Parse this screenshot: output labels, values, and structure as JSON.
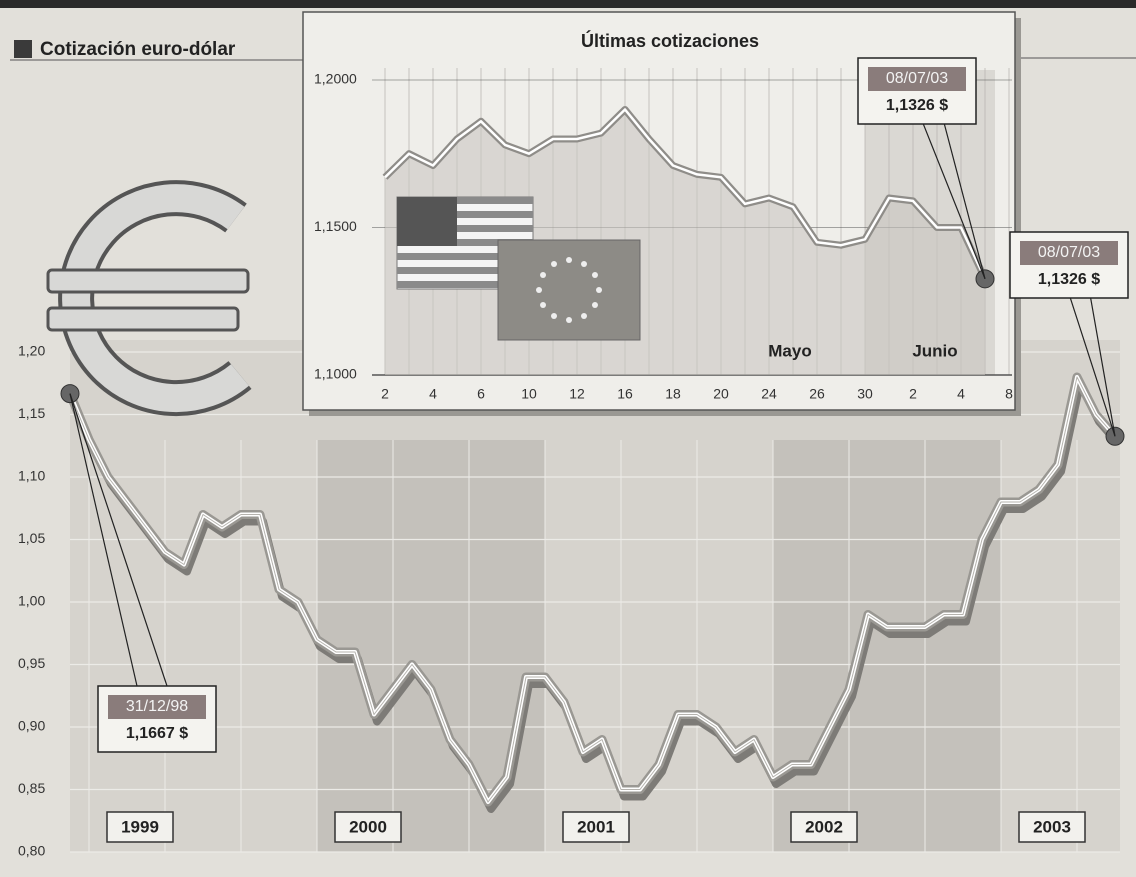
{
  "chart_data": [
    {
      "type": "line",
      "title": "Cotización euro-dólar",
      "categories": [
        null,
        "1999",
        null,
        null,
        null,
        null,
        null,
        null,
        null,
        null,
        null,
        null,
        null,
        "2000",
        null,
        null,
        null,
        null,
        null,
        null,
        null,
        null,
        null,
        null,
        null,
        "2001",
        null,
        null,
        null,
        null,
        null,
        null,
        null,
        null,
        null,
        null,
        null,
        "2002",
        null,
        null,
        null,
        null,
        null,
        null,
        null,
        null,
        null,
        null,
        null,
        "2003",
        null,
        null,
        null,
        null,
        null,
        null
      ],
      "values": [
        1.1667,
        1.13,
        1.1,
        1.08,
        1.06,
        1.04,
        1.03,
        1.07,
        1.06,
        1.07,
        1.07,
        1.01,
        1.0,
        0.97,
        0.96,
        0.96,
        0.91,
        0.93,
        0.95,
        0.93,
        0.89,
        0.87,
        0.84,
        0.86,
        0.94,
        0.94,
        0.92,
        0.88,
        0.89,
        0.85,
        0.85,
        0.87,
        0.91,
        0.91,
        0.9,
        0.88,
        0.89,
        0.86,
        0.87,
        0.87,
        0.9,
        0.93,
        0.99,
        0.98,
        0.98,
        0.98,
        0.99,
        0.99,
        1.05,
        1.08,
        1.08,
        1.09,
        1.11,
        1.18,
        1.15,
        1.1326
      ],
      "color": "#ffffff",
      "ylim": [
        0.8,
        1.2
      ],
      "yticks": [
        {
          "value": 0.8,
          "label": "0,80"
        },
        {
          "value": 0.85,
          "label": "0,85"
        },
        {
          "value": 0.9,
          "label": "0,90"
        },
        {
          "value": 0.95,
          "label": "0,95"
        },
        {
          "value": 1.0,
          "label": "1,00"
        },
        {
          "value": 1.05,
          "label": "1,05"
        },
        {
          "value": 1.1,
          "label": "1,10"
        },
        {
          "value": 1.15,
          "label": "1,15"
        },
        {
          "value": 1.2,
          "label": "1,20"
        }
      ],
      "grid": true,
      "annotations": [
        "31/12/98",
        "1,1667 $",
        "08/07/03",
        "1,1326 $"
      ]
    },
    {
      "type": "line",
      "title": "Últimas cotizaciones",
      "categories": [
        "2",
        null,
        "4",
        null,
        "6",
        null,
        "10",
        null,
        "12",
        null,
        "16",
        null,
        "18",
        null,
        "20",
        null,
        "24",
        null,
        "26",
        null,
        "30",
        null,
        "2",
        null,
        "4",
        null,
        "8"
      ],
      "values": [
        1.167,
        1.175,
        1.171,
        1.18,
        1.186,
        1.178,
        1.175,
        1.18,
        1.18,
        1.182,
        1.19,
        1.18,
        1.171,
        1.168,
        1.167,
        1.158,
        1.16,
        1.157,
        1.145,
        1.144,
        1.146,
        1.16,
        1.159,
        1.15,
        1.15,
        1.1326,
        null
      ],
      "color": "#ffffff",
      "ylim": [
        1.1,
        1.2
      ],
      "yticks": [
        {
          "value": 1.1,
          "label": "1,1000"
        },
        {
          "value": 1.15,
          "label": "1,1500"
        },
        {
          "value": 1.2,
          "label": "1,2000"
        }
      ],
      "grid": true,
      "month_labels": [
        "Mayo",
        "Junio"
      ],
      "annotations": [
        "08/07/03",
        "1,1326 $"
      ]
    }
  ]
}
